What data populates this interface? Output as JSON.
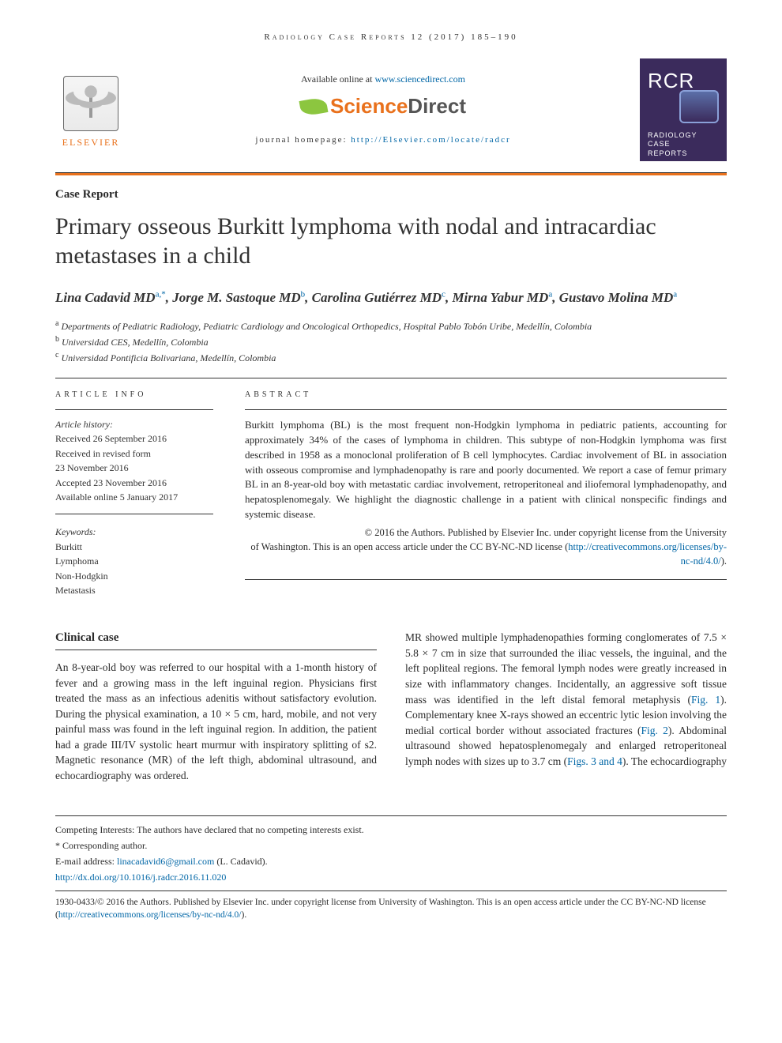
{
  "journal_header": "Radiology Case Reports 12 (2017) 185–190",
  "banner": {
    "available_prefix": "Available online at ",
    "available_link": "www.sciencedirect.com",
    "sd_logo_text_1": "Science",
    "sd_logo_text_2": "Direct",
    "homepage_prefix": "journal homepage: ",
    "homepage_link": "http://Elsevier.com/locate/radcr",
    "elsevier_label": "ELSEVIER",
    "rcr_big": "RCR",
    "rcr_small_1": "RADIOLOGY",
    "rcr_small_2": "CASE",
    "rcr_small_3": "REPORTS"
  },
  "article": {
    "type_label": "Case Report",
    "title": "Primary osseous Burkitt lymphoma with nodal and intracardiac metastases in a child",
    "authors_html_parts": [
      {
        "name": "Lina Cadavid MD",
        "sup": "a,",
        "star": true
      },
      {
        "name": ", Jorge M. Sastoque MD",
        "sup": "b"
      },
      {
        "name": ", Carolina Gutiérrez MD",
        "sup": "c"
      },
      {
        "name": ", Mirna Yabur MD",
        "sup": "a"
      },
      {
        "name": ", Gustavo Molina MD",
        "sup": "a"
      }
    ],
    "affiliations": [
      {
        "sup": "a",
        "text": " Departments of Pediatric Radiology, Pediatric Cardiology and Oncological Orthopedics, Hospital Pablo Tobón Uribe, Medellín, Colombia"
      },
      {
        "sup": "b",
        "text": " Universidad CES, Medellín, Colombia"
      },
      {
        "sup": "c",
        "text": " Universidad Pontificia Bolivariana, Medellín, Colombia"
      }
    ]
  },
  "article_info": {
    "heading": "ARTICLE INFO",
    "history_label": "Article history:",
    "lines": [
      "Received 26 September 2016",
      "Received in revised form",
      "23 November 2016",
      "Accepted 23 November 2016",
      "Available online 5 January 2017"
    ],
    "keywords_label": "Keywords:",
    "keywords": [
      "Burkitt",
      "Lymphoma",
      "Non-Hodgkin",
      "Metastasis"
    ]
  },
  "abstract": {
    "heading": "ABSTRACT",
    "text": "Burkitt lymphoma (BL) is the most frequent non-Hodgkin lymphoma in pediatric patients, accounting for approximately 34% of the cases of lymphoma in children. This subtype of non-Hodgkin lymphoma was first described in 1958 as a monoclonal proliferation of B cell lymphocytes. Cardiac involvement of BL in association with osseous compromise and lymphadenopathy is rare and poorly documented. We report a case of femur primary BL in an 8-year-old boy with metastatic cardiac involvement, retroperitoneal and iliofemoral lymphadenopathy, and hepatosplenomegaly. We highlight the diagnostic challenge in a patient with clinical nonspecific findings and systemic disease.",
    "copyright_1": "© 2016 the Authors. Published by Elsevier Inc. under copyright license from the University",
    "copyright_2": "of Washington. This is an open access article under the CC BY-NC-ND license (",
    "copyright_link": "http://creativecommons.org/licenses/by-nc-nd/4.0/",
    "copyright_3": ")."
  },
  "body": {
    "section_heading": "Clinical case",
    "col1": "An 8-year-old boy was referred to our hospital with a 1-month history of fever and a growing mass in the left inguinal region. Physicians first treated the mass as an infectious adenitis without satisfactory evolution. During the physical examination, a 10 × 5 cm, hard, mobile, and not very painful mass was found in the left inguinal region. In addition, the patient had a grade III/IV systolic heart murmur with inspiratory splitting of s2. Magnetic resonance (MR) of the left thigh, abdominal ultrasound, and echocardiography was ordered.",
    "col2_a": "MR showed multiple lymphadenopathies forming conglomerates of 7.5 × 5.8 × 7 cm in size that surrounded the iliac vessels, the inguinal, and the left popliteal regions. The femoral lymph nodes were greatly increased in size with inflammatory changes. Incidentally, an aggressive soft tissue mass was identified in the left distal femoral metaphysis (",
    "fig1": "Fig. 1",
    "col2_b": "). Complementary knee X-rays showed an eccentric lytic lesion involving the medial cortical border without associated fractures (",
    "fig2": "Fig. 2",
    "col2_c": "). Abdominal ultrasound showed hepatosplenomegaly and enlarged retroperitoneal lymph nodes with sizes up to 3.7 cm (",
    "fig34": "Figs. 3 and 4",
    "col2_d": "). The echocardiography"
  },
  "footnotes": {
    "competing": "Competing Interests: The authors have declared that no competing interests exist.",
    "corresponding_label": "* Corresponding author.",
    "email_label": "E-mail address: ",
    "email": "linacadavid6@gmail.com",
    "email_suffix": " (L. Cadavid).",
    "doi": "http://dx.doi.org/10.1016/j.radcr.2016.11.020",
    "issn_line": "1930-0433/© 2016 the Authors. Published by Elsevier Inc. under copyright license from University of Washington. This is an open access article under the CC BY-NC-ND license (",
    "issn_link": "http://creativecommons.org/licenses/by-nc-nd/4.0/",
    "issn_suffix": ")."
  },
  "colors": {
    "orange": "#e9711c",
    "link": "#0066a6",
    "purple": "#3b2b5c"
  }
}
